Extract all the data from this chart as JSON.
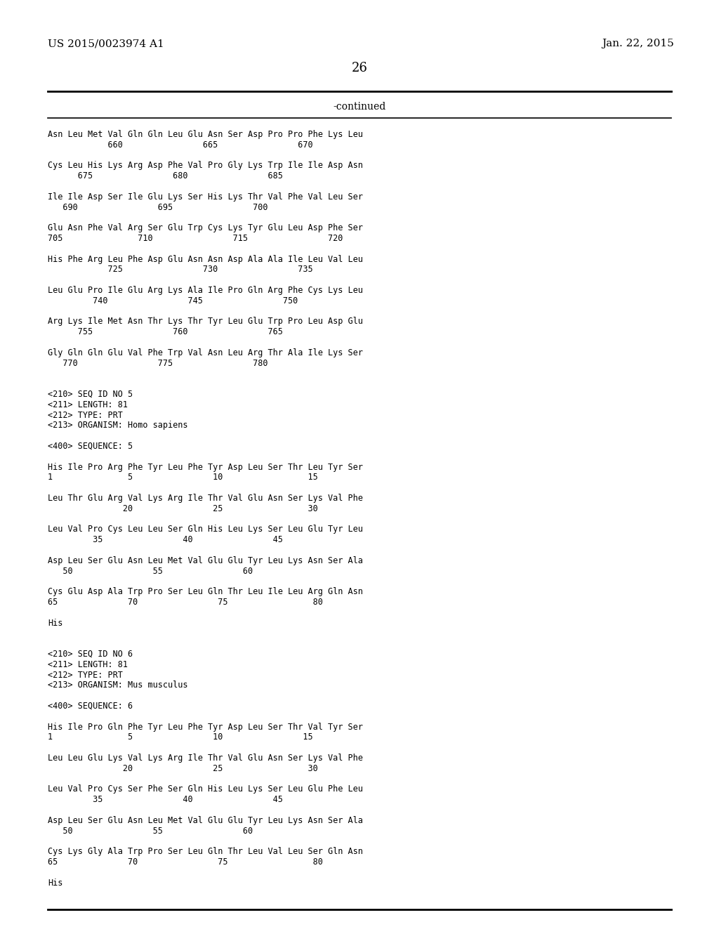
{
  "header_left": "US 2015/0023974 A1",
  "header_right": "Jan. 22, 2015",
  "page_number": "26",
  "continued_label": "-continued",
  "background_color": "#ffffff",
  "text_color": "#000000",
  "content": [
    "Asn Leu Met Val Gln Gln Leu Glu Asn Ser Asp Pro Pro Phe Lys Leu",
    "            660                665                670",
    "",
    "Cys Leu His Lys Arg Asp Phe Val Pro Gly Lys Trp Ile Ile Asp Asn",
    "      675                680                685",
    "",
    "Ile Ile Asp Ser Ile Glu Lys Ser His Lys Thr Val Phe Val Leu Ser",
    "   690                695                700",
    "",
    "Glu Asn Phe Val Arg Ser Glu Trp Cys Lys Tyr Glu Leu Asp Phe Ser",
    "705               710                715                720",
    "",
    "His Phe Arg Leu Phe Asp Glu Asn Asn Asp Ala Ala Ile Leu Val Leu",
    "            725                730                735",
    "",
    "Leu Glu Pro Ile Glu Arg Lys Ala Ile Pro Gln Arg Phe Cys Lys Leu",
    "         740                745                750",
    "",
    "Arg Lys Ile Met Asn Thr Lys Thr Tyr Leu Glu Trp Pro Leu Asp Glu",
    "      755                760                765",
    "",
    "Gly Gln Gln Glu Val Phe Trp Val Asn Leu Arg Thr Ala Ile Lys Ser",
    "   770                775                780",
    "",
    "",
    "<210> SEQ ID NO 5",
    "<211> LENGTH: 81",
    "<212> TYPE: PRT",
    "<213> ORGANISM: Homo sapiens",
    "",
    "<400> SEQUENCE: 5",
    "",
    "His Ile Pro Arg Phe Tyr Leu Phe Tyr Asp Leu Ser Thr Leu Tyr Ser",
    "1               5                10                 15",
    "",
    "Leu Thr Glu Arg Val Lys Arg Ile Thr Val Glu Asn Ser Lys Val Phe",
    "               20                25                 30",
    "",
    "Leu Val Pro Cys Leu Leu Ser Gln His Leu Lys Ser Leu Glu Tyr Leu",
    "         35                40                45",
    "",
    "Asp Leu Ser Glu Asn Leu Met Val Glu Glu Tyr Leu Lys Asn Ser Ala",
    "   50                55                60",
    "",
    "Cys Glu Asp Ala Trp Pro Ser Leu Gln Thr Leu Ile Leu Arg Gln Asn",
    "65              70                75                 80",
    "",
    "His",
    "",
    "",
    "<210> SEQ ID NO 6",
    "<211> LENGTH: 81",
    "<212> TYPE: PRT",
    "<213> ORGANISM: Mus musculus",
    "",
    "<400> SEQUENCE: 6",
    "",
    "His Ile Pro Gln Phe Tyr Leu Phe Tyr Asp Leu Ser Thr Val Tyr Ser",
    "1               5                10                15",
    "",
    "Leu Leu Glu Lys Val Lys Arg Ile Thr Val Glu Asn Ser Lys Val Phe",
    "               20                25                 30",
    "",
    "Leu Val Pro Cys Ser Phe Ser Gln His Leu Lys Ser Leu Glu Phe Leu",
    "         35                40                45",
    "",
    "Asp Leu Ser Glu Asn Leu Met Val Glu Glu Tyr Leu Lys Asn Ser Ala",
    "   50                55                60",
    "",
    "Cys Lys Gly Ala Trp Pro Ser Leu Gln Thr Leu Val Leu Ser Gln Asn",
    "65              70                75                 80",
    "",
    "His"
  ]
}
